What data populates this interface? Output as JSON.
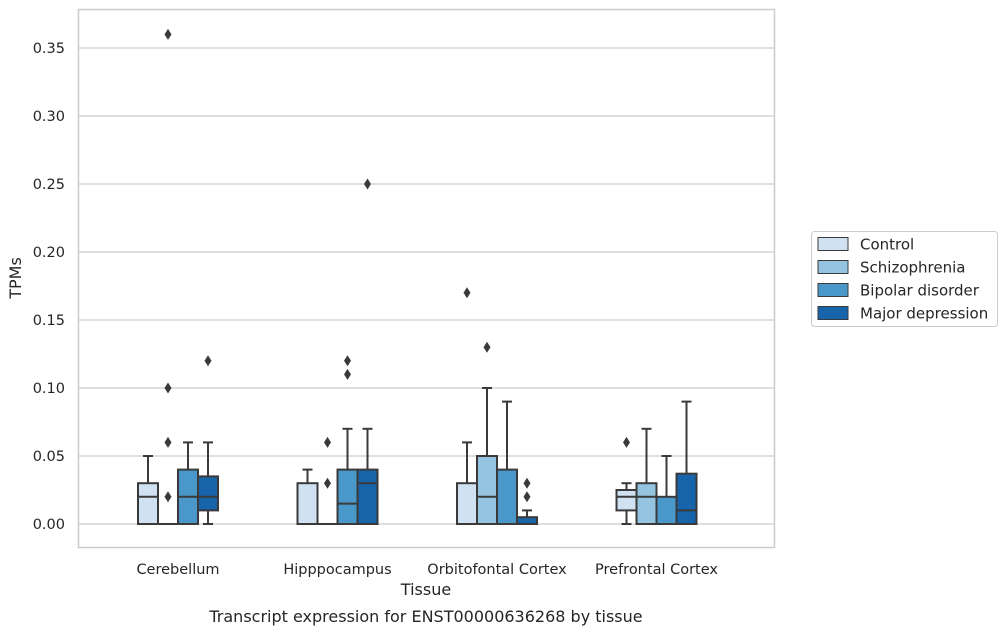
{
  "caption": "Transcript expression for ENST00000636268 by tissue",
  "chart_data": {
    "type": "box",
    "title": "",
    "xlabel": "Tissue",
    "ylabel": "TPMs",
    "ylim": [
      -0.0175,
      0.3775
    ],
    "yticks": [
      0.0,
      0.05,
      0.1,
      0.15,
      0.2,
      0.25,
      0.3,
      0.35
    ],
    "ytick_labels": [
      "0.00",
      "0.05",
      "0.10",
      "0.15",
      "0.20",
      "0.25",
      "0.30",
      "0.35"
    ],
    "grid": "horizontal",
    "legend_position": "outside-right",
    "categories": [
      "Cerebellum",
      "Hipppocampus",
      "Orbitofontal Cortex",
      "Prefrontal Cortex"
    ],
    "series": [
      {
        "name": "Control",
        "color": "#d0e1f2",
        "boxes": [
          {
            "whisker_low": 0.0,
            "q1": 0.0,
            "median": 0.02,
            "q3": 0.03,
            "whisker_high": 0.05,
            "outliers": []
          },
          {
            "whisker_low": 0.0,
            "q1": 0.0,
            "median": 0.0,
            "q3": 0.03,
            "whisker_high": 0.04,
            "outliers": []
          },
          {
            "whisker_low": 0.0,
            "q1": 0.0,
            "median": 0.0,
            "q3": 0.03,
            "whisker_high": 0.06,
            "outliers": [
              0.17
            ]
          },
          {
            "whisker_low": 0.0,
            "q1": 0.01,
            "median": 0.02,
            "q3": 0.025,
            "whisker_high": 0.03,
            "outliers": [
              0.06
            ]
          }
        ]
      },
      {
        "name": "Schizophrenia",
        "color": "#94c4df",
        "boxes": [
          {
            "whisker_low": 0.0,
            "q1": 0.0,
            "median": 0.0,
            "q3": 0.0,
            "whisker_high": 0.0,
            "outliers": [
              0.02,
              0.06,
              0.1,
              0.36
            ]
          },
          {
            "whisker_low": 0.0,
            "q1": 0.0,
            "median": 0.0,
            "q3": 0.0,
            "whisker_high": 0.0,
            "outliers": [
              0.03,
              0.06
            ]
          },
          {
            "whisker_low": 0.0,
            "q1": 0.0,
            "median": 0.02,
            "q3": 0.05,
            "whisker_high": 0.1,
            "outliers": [
              0.13
            ]
          },
          {
            "whisker_low": 0.0,
            "q1": 0.0,
            "median": 0.02,
            "q3": 0.03,
            "whisker_high": 0.07,
            "outliers": []
          }
        ]
      },
      {
        "name": "Bipolar disorder",
        "color": "#4a98c9",
        "boxes": [
          {
            "whisker_low": 0.0,
            "q1": 0.0,
            "median": 0.02,
            "q3": 0.04,
            "whisker_high": 0.06,
            "outliers": []
          },
          {
            "whisker_low": 0.0,
            "q1": 0.0,
            "median": 0.015,
            "q3": 0.04,
            "whisker_high": 0.07,
            "outliers": [
              0.11,
              0.12
            ]
          },
          {
            "whisker_low": 0.0,
            "q1": 0.0,
            "median": 0.0,
            "q3": 0.04,
            "whisker_high": 0.09,
            "outliers": []
          },
          {
            "whisker_low": 0.0,
            "q1": 0.0,
            "median": 0.0,
            "q3": 0.02,
            "whisker_high": 0.05,
            "outliers": []
          }
        ]
      },
      {
        "name": "Major depression",
        "color": "#1764ab",
        "boxes": [
          {
            "whisker_low": 0.0,
            "q1": 0.01,
            "median": 0.02,
            "q3": 0.035,
            "whisker_high": 0.06,
            "outliers": [
              0.12
            ]
          },
          {
            "whisker_low": 0.0,
            "q1": 0.0,
            "median": 0.03,
            "q3": 0.04,
            "whisker_high": 0.07,
            "outliers": [
              0.25
            ]
          },
          {
            "whisker_low": 0.0,
            "q1": 0.0,
            "median": 0.0,
            "q3": 0.005,
            "whisker_high": 0.01,
            "outliers": [
              0.02,
              0.03
            ]
          },
          {
            "whisker_low": 0.0,
            "q1": 0.0,
            "median": 0.01,
            "q3": 0.037,
            "whisker_high": 0.09,
            "outliers": []
          }
        ]
      }
    ]
  }
}
